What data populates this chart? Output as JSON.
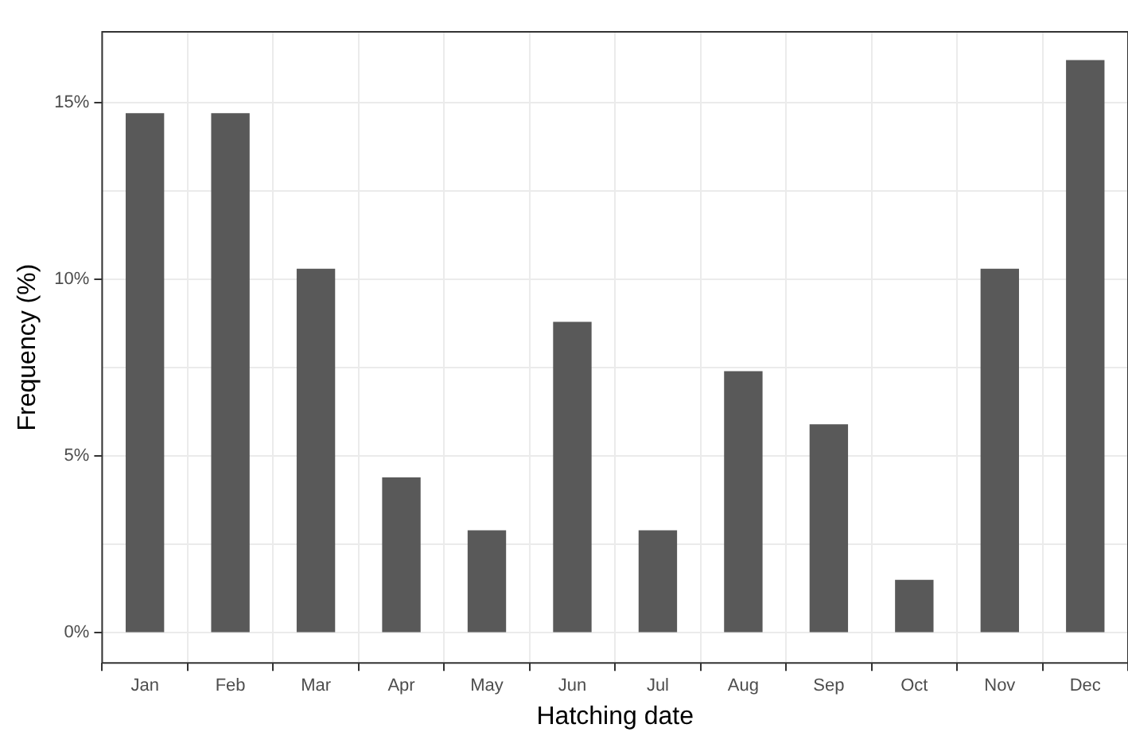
{
  "chart_data": {
    "type": "bar",
    "xlabel": "Hatching date",
    "ylabel": "Frequency (%)",
    "categories": [
      "Jan",
      "Feb",
      "Mar",
      "Apr",
      "May",
      "Jun",
      "Jul",
      "Aug",
      "Sep",
      "Oct",
      "Nov",
      "Dec"
    ],
    "values": [
      14.7,
      14.7,
      10.3,
      4.4,
      2.9,
      8.8,
      2.9,
      7.4,
      5.9,
      1.5,
      10.3,
      16.2
    ],
    "color": "#595959",
    "ylim": [
      -0.85,
      17.0
    ],
    "yticks": [
      {
        "value": 0,
        "label": "0%"
      },
      {
        "value": 2.5,
        "label": null
      },
      {
        "value": 5,
        "label": "5%"
      },
      {
        "value": 7.5,
        "label": null
      },
      {
        "value": 10,
        "label": "10%"
      },
      {
        "value": 12.5,
        "label": null
      },
      {
        "value": 15,
        "label": "15%"
      }
    ],
    "grid": true
  }
}
